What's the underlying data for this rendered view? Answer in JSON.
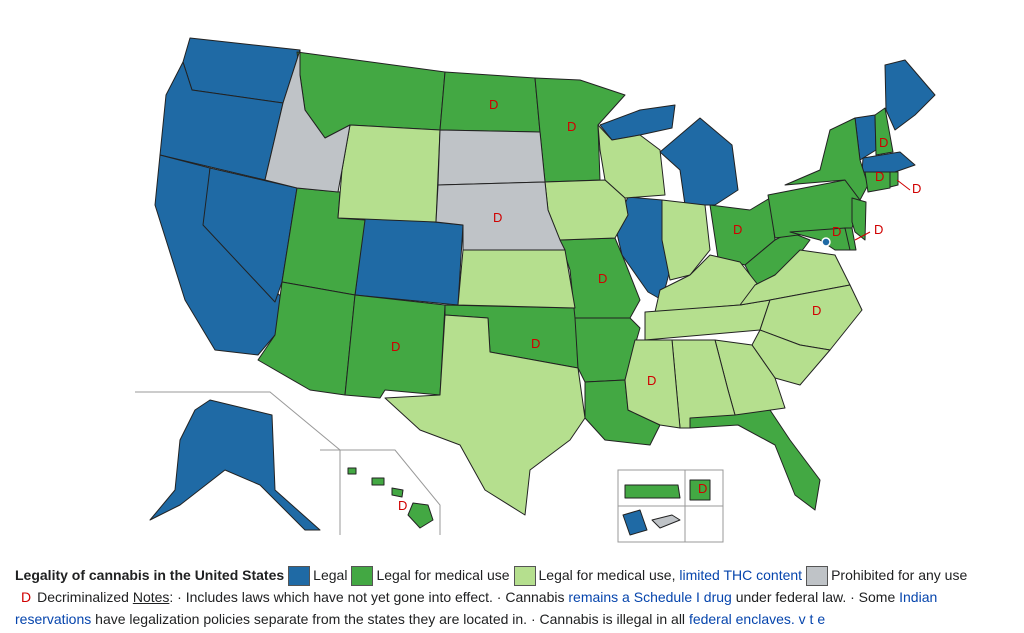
{
  "colors": {
    "legal": "#1f6aa5",
    "medical": "#43a843",
    "limited_thc": "#b5df8e",
    "prohibited": "#bfc3c7"
  },
  "decriminalized_marker": "D",
  "legend": {
    "title": "Legality of cannabis in the United States",
    "items": [
      {
        "label": "Legal"
      },
      {
        "label": "Legal for medical use"
      },
      {
        "label": "Legal for medical use, ",
        "link": "limited THC content"
      },
      {
        "label": "Prohibited for any use"
      }
    ],
    "decriminalized_label": "Decriminalized",
    "notes_label": "Notes",
    "note1": ": · Includes laws which have not yet gone into effect. · Cannabis ",
    "note1_link": "remains a Schedule I drug",
    "note2": " under federal law. · Some ",
    "note2_link": "Indian",
    "note3_link": "reservations",
    "note3": " have legalization policies separate from the states they are located in. · Cannabis is illegal in all ",
    "note3_link2": "federal enclaves",
    "note3_end": ".",
    "vte": "v t e"
  }
}
